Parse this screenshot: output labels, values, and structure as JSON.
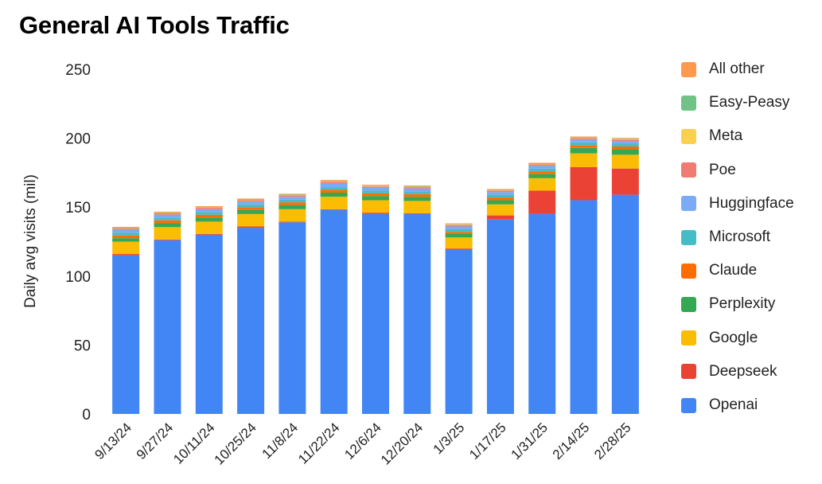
{
  "title": "General AI Tools Traffic",
  "chart_data": {
    "type": "bar",
    "stacked": true,
    "title": "General AI Tools Traffic",
    "xlabel": "",
    "ylabel": "Daily avg visits (mil)",
    "ylim": [
      0,
      250
    ],
    "yticks": [
      0,
      50,
      100,
      150,
      200,
      250
    ],
    "grid": false,
    "legend_position": "right",
    "categories": [
      "9/13/24",
      "9/27/24",
      "10/11/24",
      "10/25/24",
      "11/8/24",
      "11/22/24",
      "12/6/24",
      "12/20/24",
      "1/3/25",
      "1/17/25",
      "1/31/25",
      "2/14/25",
      "2/28/25"
    ],
    "series": [
      {
        "name": "Openai",
        "color": "#4285F4",
        "values": [
          115,
          126,
          130,
          135,
          139,
          148,
          145,
          145,
          119,
          141,
          145,
          155,
          159
        ]
      },
      {
        "name": "Deepseek",
        "color": "#EA4335",
        "values": [
          1,
          0.5,
          0.5,
          1,
          0.5,
          0.5,
          1,
          0.5,
          1,
          3,
          17,
          24,
          19
        ]
      },
      {
        "name": "Google",
        "color": "#FBBC04",
        "values": [
          9,
          9,
          9,
          9,
          9,
          9,
          9,
          9,
          8,
          8,
          9,
          10,
          10
        ]
      },
      {
        "name": "Perplexity",
        "color": "#34A853",
        "values": [
          2.5,
          3,
          3,
          3,
          3,
          3,
          3,
          3,
          2.5,
          3,
          3,
          4,
          4
        ]
      },
      {
        "name": "Claude",
        "color": "#FF6D01",
        "values": [
          2,
          2,
          2,
          2,
          2,
          2,
          2,
          2,
          1.5,
          2,
          2,
          2,
          2
        ]
      },
      {
        "name": "Microsoft",
        "color": "#46BDC6",
        "values": [
          2,
          2,
          2,
          2,
          2,
          2,
          2,
          2,
          2,
          2,
          2,
          2,
          2
        ]
      },
      {
        "name": "Huggingface",
        "color": "#7BAAF7",
        "values": [
          2,
          2,
          2,
          2,
          2,
          3,
          2,
          2,
          2,
          2,
          2,
          2,
          2
        ]
      },
      {
        "name": "Poe",
        "color": "#F07B72",
        "values": [
          1,
          1,
          1,
          1,
          1,
          1,
          1,
          1,
          1,
          1,
          1,
          1,
          1
        ]
      },
      {
        "name": "Meta",
        "color": "#FCD04F",
        "values": [
          0.3,
          0.3,
          0.3,
          0.3,
          0.3,
          0.3,
          0.3,
          0.3,
          0.3,
          0.3,
          0.3,
          0.3,
          0.3
        ]
      },
      {
        "name": "Easy-Peasy",
        "color": "#71C287",
        "values": [
          0.3,
          0.3,
          0.3,
          0.3,
          0.3,
          0.3,
          0.3,
          0.3,
          0.3,
          0.3,
          0.3,
          0.3,
          0.3
        ]
      },
      {
        "name": "All other",
        "color": "#FF994D",
        "values": [
          0.6,
          0.6,
          0.6,
          0.6,
          0.6,
          0.6,
          0.6,
          0.6,
          0.6,
          0.6,
          0.6,
          0.6,
          0.6
        ]
      }
    ]
  }
}
